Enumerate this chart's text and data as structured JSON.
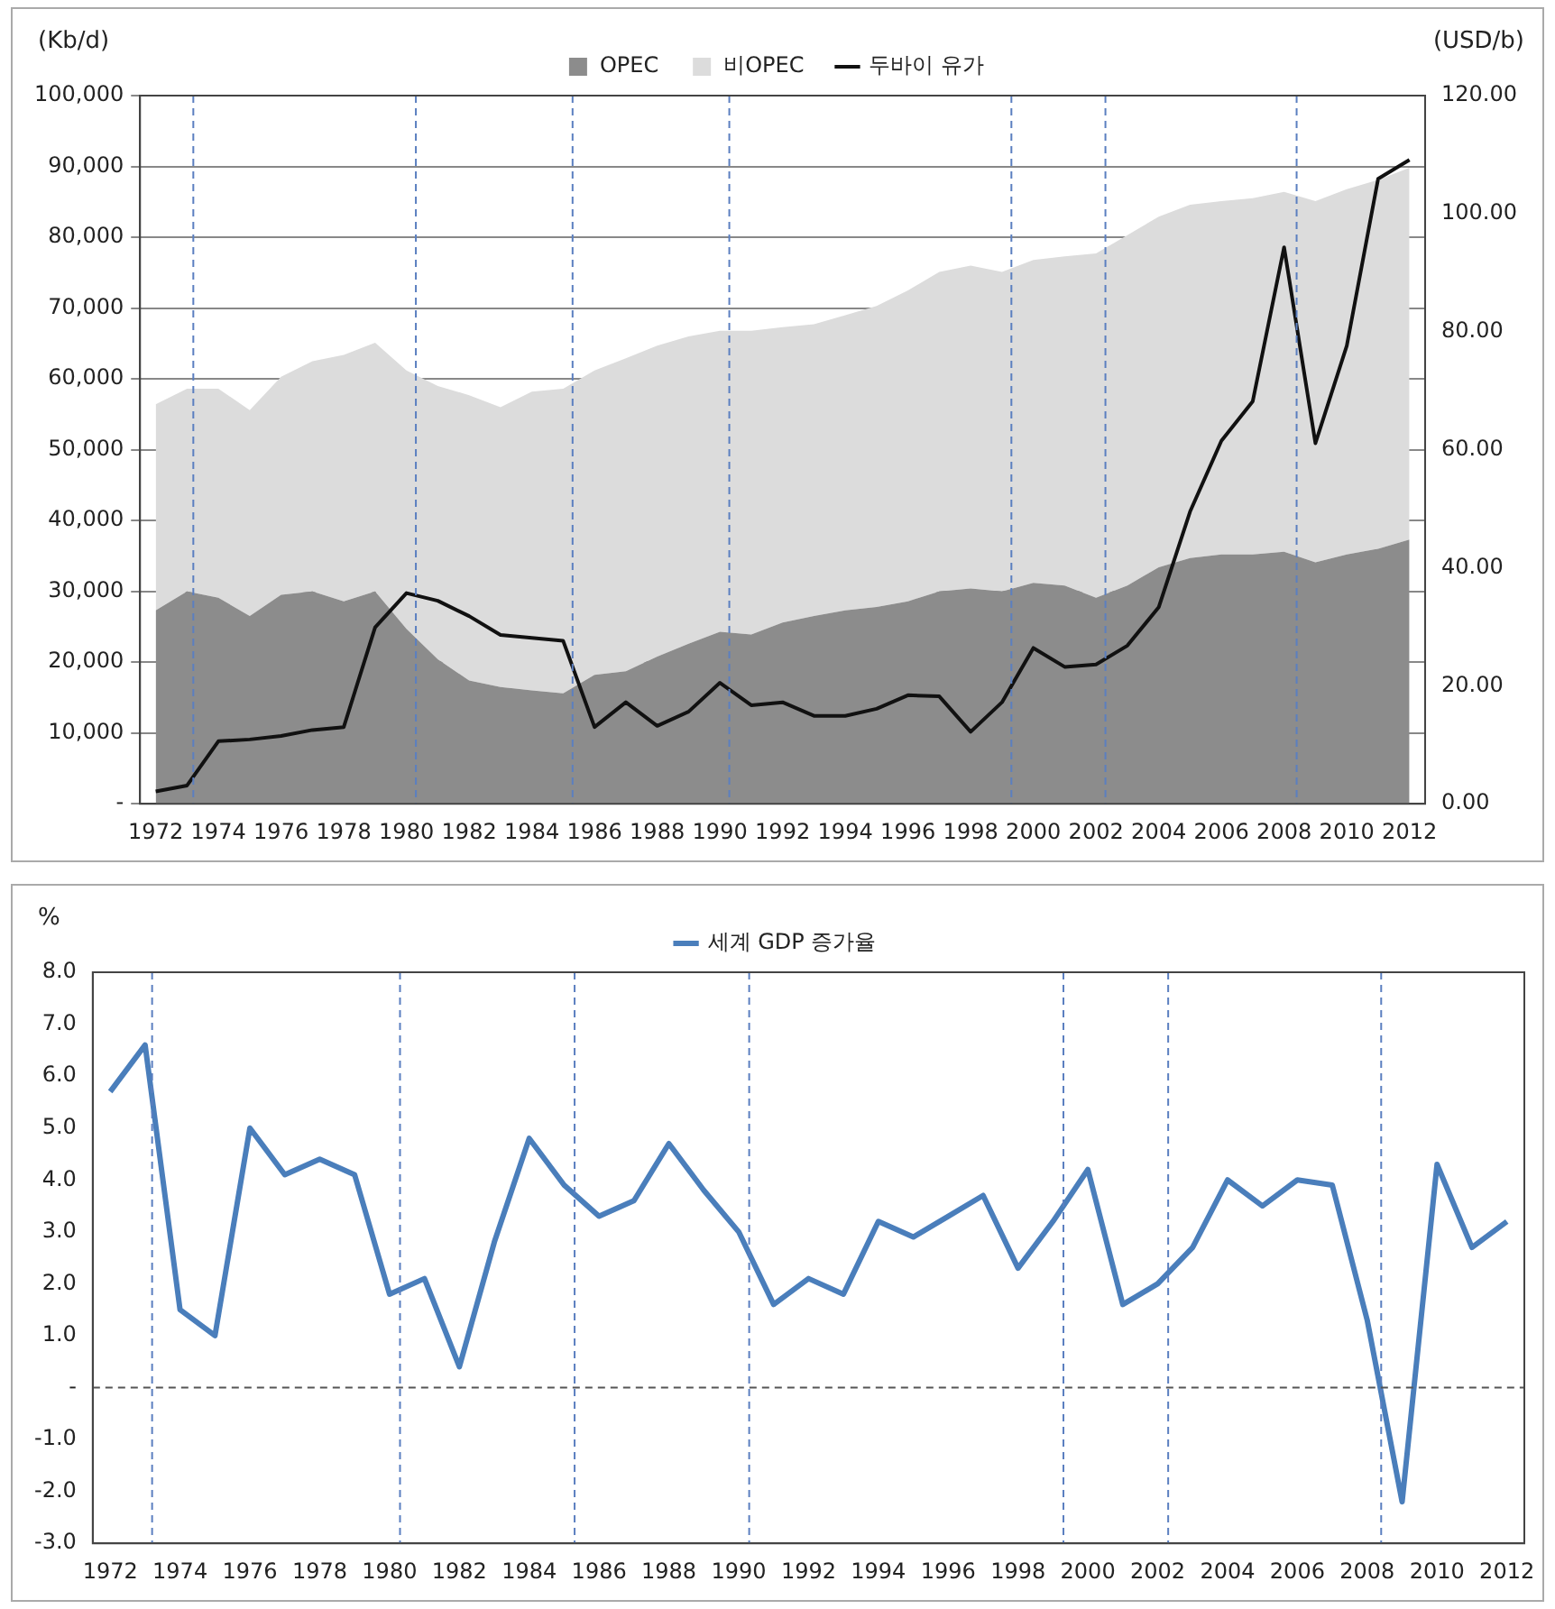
{
  "chart_data": [
    {
      "type": "area",
      "stacked": true,
      "ylabel": "(Kb/d)",
      "y2label": "(USD/b)",
      "x": [
        1972,
        1973,
        1974,
        1975,
        1976,
        1977,
        1978,
        1979,
        1980,
        1981,
        1982,
        1983,
        1984,
        1985,
        1986,
        1987,
        1988,
        1989,
        1990,
        1991,
        1992,
        1993,
        1994,
        1995,
        1996,
        1997,
        1998,
        1999,
        2000,
        2001,
        2002,
        2003,
        2004,
        2005,
        2006,
        2007,
        2008,
        2009,
        2010,
        2011,
        2012
      ],
      "series": [
        {
          "name": "OPEC",
          "type": "area",
          "color": "#8c8c8c",
          "values": [
            27300,
            30000,
            29100,
            26500,
            29500,
            30000,
            28600,
            30000,
            24700,
            20400,
            17400,
            16500,
            16000,
            15600,
            18200,
            18700,
            20800,
            22600,
            24300,
            23900,
            25600,
            26500,
            27300,
            27800,
            28600,
            30000,
            30400,
            30000,
            31200,
            30800,
            29100,
            30800,
            33400,
            34700,
            35200,
            35200,
            35600,
            34100,
            35200,
            36000,
            37300
          ]
        },
        {
          "name": "비OPEC",
          "type": "area",
          "color": "#dcdcdc",
          "values": [
            29100,
            28600,
            29500,
            29100,
            30800,
            32500,
            34800,
            35100,
            36500,
            38600,
            40300,
            39500,
            42200,
            43000,
            43000,
            44200,
            43900,
            43400,
            42500,
            42900,
            41700,
            41200,
            41700,
            42500,
            43900,
            45100,
            45600,
            45100,
            45600,
            46500,
            48600,
            49500,
            49500,
            49900,
            49900,
            50300,
            50800,
            51000,
            51600,
            52100,
            52500
          ]
        },
        {
          "name": "두바이 유가",
          "type": "line",
          "axis": "y2",
          "color": "#111111",
          "values": [
            2.1,
            3.1,
            10.6,
            10.9,
            11.5,
            12.5,
            13.0,
            29.9,
            35.7,
            34.4,
            31.8,
            28.6,
            28.1,
            27.6,
            13.0,
            17.2,
            13.2,
            15.6,
            20.5,
            16.7,
            17.2,
            14.9,
            14.9,
            16.1,
            18.4,
            18.2,
            12.2,
            17.2,
            26.4,
            23.2,
            23.6,
            26.8,
            33.3,
            49.5,
            61.5,
            68.2,
            94.3,
            61.1,
            77.6,
            105.9,
            109.1
          ]
        }
      ],
      "xlim": [
        1971.5,
        2012.5
      ],
      "xticks": [
        1972,
        1974,
        1976,
        1978,
        1980,
        1982,
        1984,
        1986,
        1988,
        1990,
        1992,
        1994,
        1996,
        1998,
        2000,
        2002,
        2004,
        2006,
        2008,
        2010,
        2012
      ],
      "ylim": [
        0,
        100000
      ],
      "yticks": [
        {
          "value": 0,
          "label": "-"
        },
        {
          "value": 10000,
          "label": "10,000"
        },
        {
          "value": 20000,
          "label": "20,000"
        },
        {
          "value": 30000,
          "label": "30,000"
        },
        {
          "value": 40000,
          "label": "40,000"
        },
        {
          "value": 50000,
          "label": "50,000"
        },
        {
          "value": 60000,
          "label": "60,000"
        },
        {
          "value": 70000,
          "label": "70,000"
        },
        {
          "value": 80000,
          "label": "80,000"
        },
        {
          "value": 90000,
          "label": "90,000"
        },
        {
          "value": 100000,
          "label": "100,000"
        }
      ],
      "y2lim": [
        0,
        120
      ],
      "y2ticks": [
        {
          "value": 0,
          "label": "0.00"
        },
        {
          "value": 20,
          "label": "20.00"
        },
        {
          "value": 40,
          "label": "40.00"
        },
        {
          "value": 60,
          "label": "60.00"
        },
        {
          "value": 80,
          "label": "80.00"
        },
        {
          "value": 100,
          "label": "100.00"
        },
        {
          "value": 120,
          "label": "120.00"
        }
      ],
      "ref_lines": [
        {
          "axis": "x",
          "value": 1973.2,
          "color": "#5b7fc0",
          "line_style": "dashed"
        },
        {
          "axis": "x",
          "value": 1980.3,
          "color": "#5b7fc0",
          "line_style": "dashed"
        },
        {
          "axis": "x",
          "value": 1985.3,
          "color": "#5b7fc0",
          "line_style": "dashed"
        },
        {
          "axis": "x",
          "value": 1990.3,
          "color": "#5b7fc0",
          "line_style": "dashed"
        },
        {
          "axis": "x",
          "value": 1999.3,
          "color": "#5b7fc0",
          "line_style": "dashed"
        },
        {
          "axis": "x",
          "value": 2002.3,
          "color": "#5b7fc0",
          "line_style": "dashed"
        },
        {
          "axis": "x",
          "value": 2008.4,
          "color": "#5b7fc0",
          "line_style": "dashed"
        }
      ],
      "grid": "y",
      "legend": "top",
      "marker": "none",
      "line_style": "solid"
    },
    {
      "type": "line",
      "ylabel": "%",
      "x": [
        1972,
        1973,
        1974,
        1975,
        1976,
        1977,
        1978,
        1979,
        1980,
        1981,
        1982,
        1983,
        1984,
        1985,
        1986,
        1987,
        1988,
        1989,
        1990,
        1991,
        1992,
        1993,
        1994,
        1995,
        1996,
        1997,
        1998,
        1999,
        2000,
        2001,
        2002,
        2003,
        2004,
        2005,
        2006,
        2007,
        2008,
        2009,
        2010,
        2011,
        2012
      ],
      "series": [
        {
          "name": "세계 GDP 증가율",
          "color": "#4a7ebb",
          "values": [
            5.7,
            6.6,
            1.5,
            1.0,
            5.0,
            4.1,
            4.4,
            4.1,
            1.8,
            2.1,
            0.4,
            2.8,
            4.8,
            3.9,
            3.3,
            3.6,
            4.7,
            3.8,
            3.0,
            1.6,
            2.1,
            1.8,
            3.2,
            2.9,
            3.3,
            3.7,
            2.3,
            3.2,
            4.2,
            1.6,
            2.0,
            2.7,
            4.0,
            3.5,
            4.0,
            3.9,
            1.3,
            -2.2,
            4.3,
            2.7,
            3.2
          ]
        }
      ],
      "xlim": [
        1971.5,
        2012.5
      ],
      "xticks": [
        1972,
        1974,
        1976,
        1978,
        1980,
        1982,
        1984,
        1986,
        1988,
        1990,
        1992,
        1994,
        1996,
        1998,
        2000,
        2002,
        2004,
        2006,
        2008,
        2010,
        2012
      ],
      "ylim": [
        -3,
        8
      ],
      "yticks": [
        {
          "value": -3,
          "label": "-3.0"
        },
        {
          "value": -2,
          "label": "-2.0"
        },
        {
          "value": -1,
          "label": "-1.0"
        },
        {
          "value": 0,
          "label": "-"
        },
        {
          "value": 1,
          "label": "1.0"
        },
        {
          "value": 2,
          "label": "2.0"
        },
        {
          "value": 3,
          "label": "3.0"
        },
        {
          "value": 4,
          "label": "4.0"
        },
        {
          "value": 5,
          "label": "5.0"
        },
        {
          "value": 6,
          "label": "6.0"
        },
        {
          "value": 7,
          "label": "7.0"
        },
        {
          "value": 8,
          "label": "8.0"
        }
      ],
      "ref_lines": [
        {
          "axis": "y",
          "value": 0,
          "color": "#555555",
          "line_style": "dashed"
        },
        {
          "axis": "x",
          "value": 1973.2,
          "color": "#5b7fc0",
          "line_style": "dashed"
        },
        {
          "axis": "x",
          "value": 1980.3,
          "color": "#5b7fc0",
          "line_style": "dashed"
        },
        {
          "axis": "x",
          "value": 1985.3,
          "color": "#5b7fc0",
          "line_style": "dashed"
        },
        {
          "axis": "x",
          "value": 1990.3,
          "color": "#5b7fc0",
          "line_style": "dashed"
        },
        {
          "axis": "x",
          "value": 1999.3,
          "color": "#5b7fc0",
          "line_style": "dashed"
        },
        {
          "axis": "x",
          "value": 2002.3,
          "color": "#5b7fc0",
          "line_style": "dashed"
        },
        {
          "axis": "x",
          "value": 2008.4,
          "color": "#5b7fc0",
          "line_style": "dashed"
        }
      ],
      "legend": "top",
      "marker": "none",
      "line_style": "solid"
    }
  ]
}
